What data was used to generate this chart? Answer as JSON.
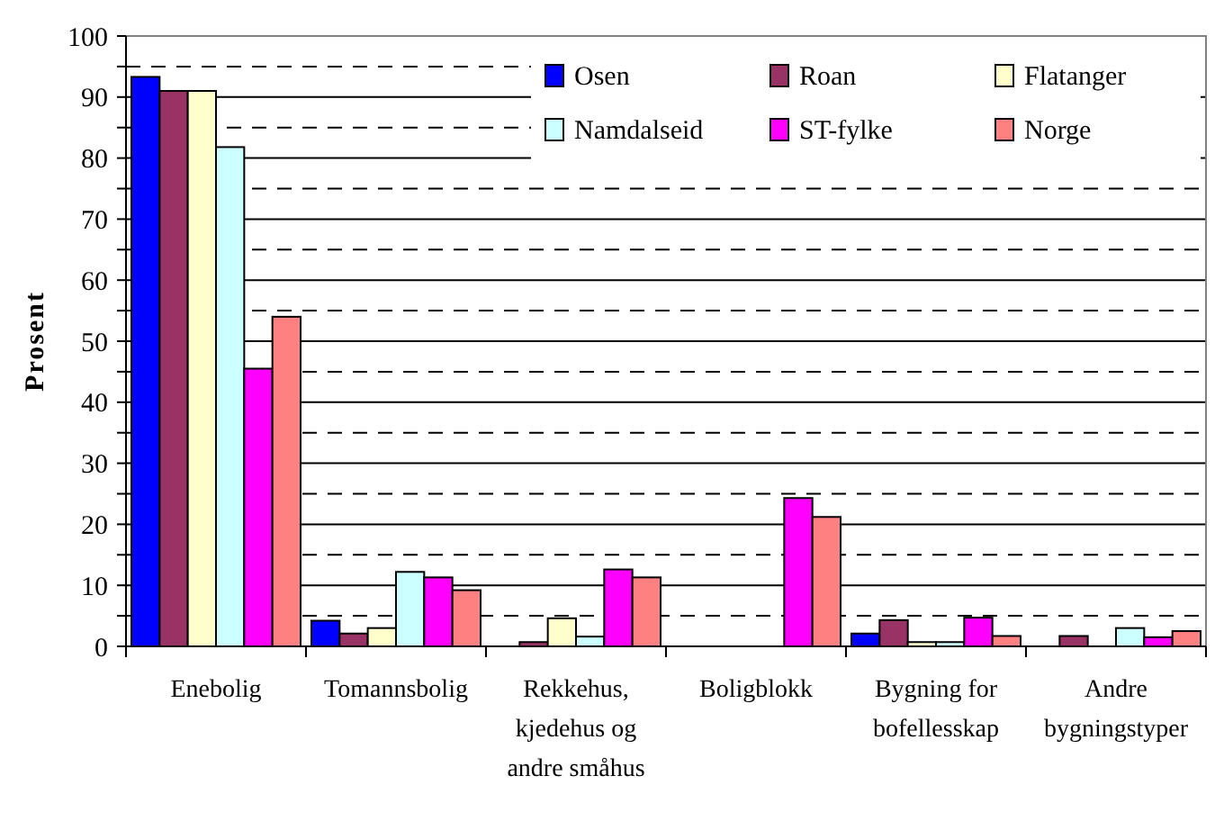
{
  "chart_data": {
    "type": "bar",
    "ylabel": "Prosent",
    "categories": [
      "Enebolig",
      "Tomannsbolig",
      "Rekkehus, kjedehus og andre småhus",
      "Boligblokk",
      "Bygning for bofellesskap",
      "Andre bygningstyper"
    ],
    "series": [
      {
        "name": "Osen",
        "color": "#0000ff",
        "values": [
          93.3,
          4.2,
          0,
          0,
          2.1,
          0
        ]
      },
      {
        "name": "Roan",
        "color": "#993366",
        "values": [
          91,
          2.1,
          0.7,
          0,
          4.3,
          1.7
        ]
      },
      {
        "name": "Flatanger",
        "color": "#ffffcc",
        "values": [
          91,
          3,
          4.6,
          0,
          0.7,
          null
        ]
      },
      {
        "name": "Namdalseid",
        "color": "#ccffff",
        "values": [
          81.8,
          12.2,
          1.6,
          0,
          0.7,
          3
        ]
      },
      {
        "name": "ST-fylke",
        "color": "#ff00ff",
        "values": [
          45.5,
          11.3,
          12.6,
          24.3,
          4.7,
          1.5
        ]
      },
      {
        "name": "Norge",
        "color": "#ff8080",
        "values": [
          54,
          9.2,
          11.3,
          21.2,
          1.7,
          2.5
        ]
      }
    ],
    "ylim": [
      0,
      100
    ],
    "yticks": [
      0,
      {
        "value": 5,
        "label": null
      },
      10,
      {
        "value": 15,
        "label": null
      },
      20,
      {
        "value": 25,
        "label": null
      },
      30,
      {
        "value": 35,
        "label": null
      },
      40,
      {
        "value": 45,
        "label": null
      },
      50,
      {
        "value": 55,
        "label": null
      },
      60,
      {
        "value": 65,
        "label": null
      },
      70,
      {
        "value": 75,
        "label": null
      },
      80,
      {
        "value": 85,
        "label": null
      },
      90,
      {
        "value": 95,
        "label": null
      },
      100
    ],
    "grid": true,
    "legend": "top right"
  }
}
